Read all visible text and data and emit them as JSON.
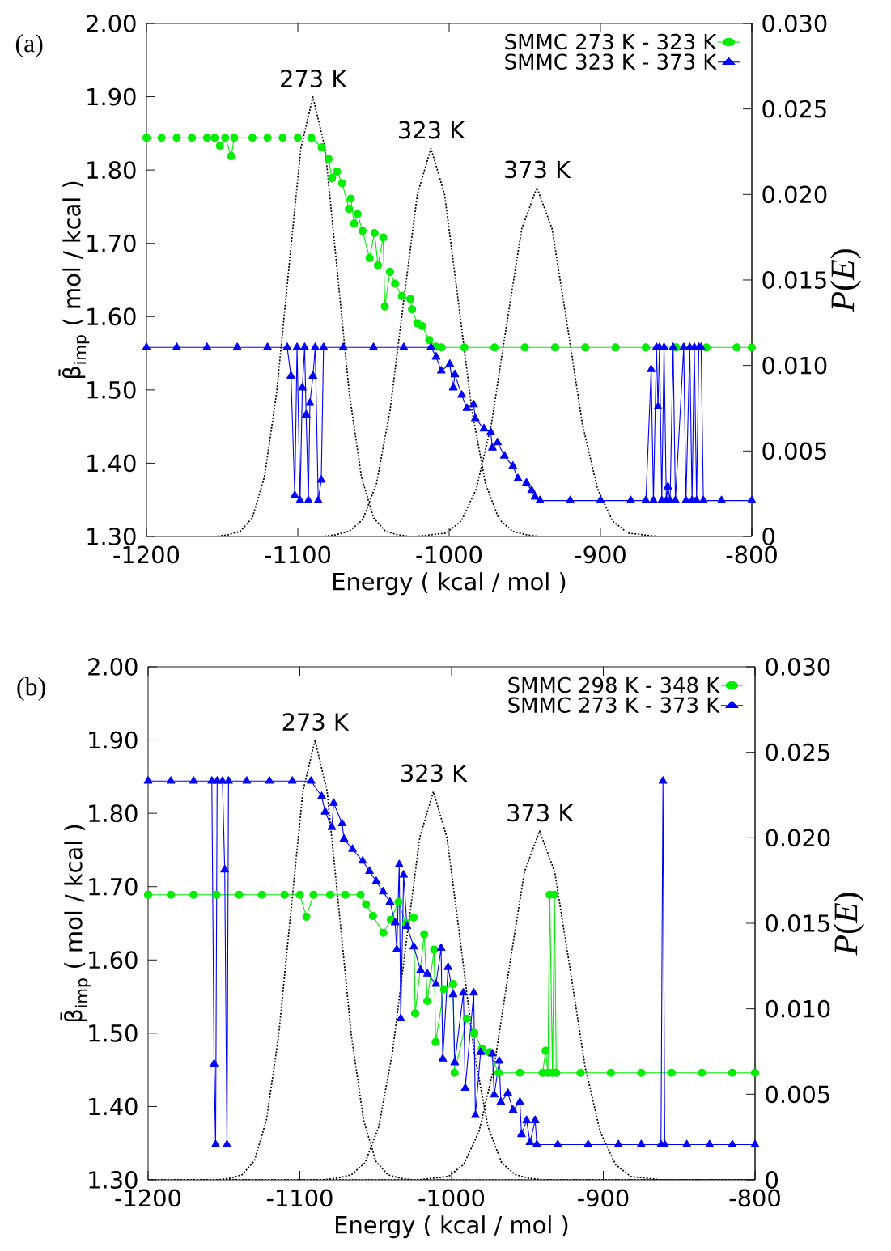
{
  "chart_data": [
    {
      "type": "line",
      "title": "(a)",
      "xlabel": "Energy ( kcal / mol )",
      "ylabel": "β̄$_{imp}$ ( mol / kcal )",
      "y2label": "*P*(*E*)",
      "legend": "top right",
      "xlim": [
        -1200,
        -800
      ],
      "xticks": [
        -1200,
        -1100,
        -1000,
        -900,
        -800
      ],
      "ylim": [
        1.3,
        2.0
      ],
      "yticks": [
        {
          "value": 1.3,
          "label": "1.30"
        },
        {
          "value": 1.4,
          "label": "1.40"
        },
        {
          "value": 1.5,
          "label": "1.50"
        },
        {
          "value": 1.6,
          "label": "1.60"
        },
        {
          "value": 1.7,
          "label": "1.70"
        },
        {
          "value": 1.8,
          "label": "1.80"
        },
        {
          "value": 1.9,
          "label": "1.90"
        },
        {
          "value": 2.0,
          "label": "2.00"
        }
      ],
      "y2lim": [
        0,
        0.03
      ],
      "y2ticks": [
        0,
        {
          "value": 0.005,
          "label": "0.005"
        },
        {
          "value": 0.01,
          "label": "0.010"
        },
        {
          "value": 0.015,
          "label": "0.015"
        },
        {
          "value": 0.02,
          "label": "0.020"
        },
        {
          "value": 0.025,
          "label": "0.025"
        },
        {
          "value": 0.03,
          "label": "0.030"
        }
      ],
      "annotations": [
        {
          "text": "273 K",
          "x": -1090,
          "y": 1.9
        },
        {
          "text": "323 K",
          "x": -1012,
          "y": 1.83
        },
        {
          "text": "373 K",
          "x": -942,
          "y": 1.776
        }
      ],
      "series": [
        {
          "name": "SMMC 273 K - 323 K",
          "color": "#00ee00",
          "marker": "circle",
          "line_style": "solid",
          "x": [
            -1200,
            -1190,
            -1180,
            -1170,
            -1160,
            -1155,
            -1151.5,
            -1148,
            -1144,
            -1142,
            -1130,
            -1120,
            -1110,
            -1100,
            -1091,
            -1084.2,
            -1079.7,
            -1077.4,
            -1074.1,
            -1070.7,
            -1066.2,
            -1065,
            -1062.8,
            -1060.5,
            -1057.2,
            -1052.6,
            -1049.3,
            -1047,
            -1043.6,
            -1042.5,
            -1039.1,
            -1035.7,
            -1031.2,
            -1025.6,
            -1024.5,
            -1021.1,
            -1017.7,
            -1013.2,
            -1008.7,
            -1005,
            -990,
            -970,
            -950,
            -930,
            -910,
            -890,
            -870,
            -850,
            -830,
            -810,
            -800
          ],
          "values": [
            1.844,
            1.844,
            1.844,
            1.844,
            1.844,
            1.844,
            1.833,
            1.844,
            1.819,
            1.844,
            1.844,
            1.844,
            1.844,
            1.844,
            1.844,
            1.831,
            1.815,
            1.789,
            1.798,
            1.782,
            1.747,
            1.761,
            1.727,
            1.74,
            1.717,
            1.68,
            1.714,
            1.67,
            1.708,
            1.614,
            1.661,
            1.645,
            1.628,
            1.624,
            1.61,
            1.591,
            1.587,
            1.568,
            1.559,
            1.558,
            1.558,
            1.558,
            1.558,
            1.558,
            1.558,
            1.558,
            1.558,
            1.558,
            1.558,
            1.558,
            1.558
          ]
        },
        {
          "name": "SMMC 323 K - 373 K",
          "color": "#0000ff",
          "marker": "triangle",
          "line_style": "solid",
          "x": [
            -1200,
            -1180,
            -1160,
            -1140,
            -1120,
            -1107,
            -1104.5,
            -1102,
            -1100.5,
            -1098.5,
            -1097,
            -1095.5,
            -1094.5,
            -1093,
            -1092,
            -1090,
            -1088.5,
            -1086.5,
            -1084.5,
            -1083,
            -1070,
            -1050,
            -1030,
            -1012,
            -1008.6,
            -1005.2,
            -999.6,
            -997.3,
            -996.2,
            -991.7,
            -988.3,
            -983.8,
            -982.7,
            -977,
            -972.5,
            -971.4,
            -968,
            -963.5,
            -957.9,
            -954.5,
            -948.9,
            -945.5,
            -943.2,
            -940,
            -920,
            -900,
            -880,
            -870,
            -866.5,
            -865,
            -863,
            -862,
            -861,
            -859.5,
            -858,
            -856.5,
            -855.5,
            -854,
            -852,
            -850.5,
            -845,
            -843.5,
            -841,
            -839.5,
            -838,
            -836.5,
            -835,
            -833.5,
            -832,
            -820,
            -800
          ],
          "values": [
            1.558,
            1.558,
            1.558,
            1.558,
            1.558,
            1.558,
            1.519,
            1.356,
            1.558,
            1.349,
            1.503,
            1.558,
            1.466,
            1.349,
            1.482,
            1.519,
            1.558,
            1.349,
            1.377,
            1.558,
            1.558,
            1.558,
            1.558,
            1.558,
            1.545,
            1.526,
            1.535,
            1.503,
            1.521,
            1.493,
            1.475,
            1.48,
            1.461,
            1.447,
            1.442,
            1.421,
            1.428,
            1.41,
            1.396,
            1.379,
            1.373,
            1.363,
            1.354,
            1.349,
            1.349,
            1.349,
            1.349,
            1.349,
            1.528,
            1.349,
            1.558,
            1.477,
            1.558,
            1.349,
            1.558,
            1.349,
            1.368,
            1.349,
            1.558,
            1.349,
            1.558,
            1.349,
            1.558,
            1.349,
            1.558,
            1.349,
            1.558,
            1.558,
            1.349,
            1.349,
            1.349
          ]
        },
        {
          "color": "#000000",
          "marker": "none",
          "line_style": "dotted",
          "axis": "y2",
          "x": [
            -1200,
            -1154,
            -1146,
            -1138,
            -1130,
            -1122,
            -1114,
            -1106,
            -1098,
            -1090,
            -1082,
            -1074,
            -1066,
            -1058,
            -1050,
            -1042,
            -1034,
            -1026,
            -800
          ],
          "values": [
            0,
            0,
            0.0001,
            0.0003,
            0.0011,
            0.0035,
            0.0084,
            0.0156,
            0.0227,
            0.0257,
            0.0227,
            0.0156,
            0.0084,
            0.0035,
            0.0011,
            0.0003,
            0.0001,
            0,
            0
          ]
        },
        {
          "color": "#000000",
          "marker": "none",
          "line_style": "dotted",
          "axis": "y2",
          "x": [
            -1200,
            -1084,
            -1075,
            -1066,
            -1057,
            -1048,
            -1039,
            -1030,
            -1021,
            -1012,
            -1003,
            -994,
            -985,
            -976,
            -967,
            -958,
            -949,
            -940,
            -800
          ],
          "values": [
            0,
            0,
            0.0001,
            0.0003,
            0.001,
            0.0031,
            0.0074,
            0.0138,
            0.02,
            0.0227,
            0.02,
            0.0138,
            0.0074,
            0.0031,
            0.001,
            0.0003,
            0.0001,
            0,
            0
          ]
        },
        {
          "color": "#000000",
          "marker": "none",
          "line_style": "dotted",
          "axis": "y2",
          "x": [
            -1200,
            -1022,
            -1012,
            -1002,
            -992,
            -982,
            -972,
            -962,
            -952,
            -942,
            -932,
            -922,
            -912,
            -902,
            -892,
            -882,
            -872,
            -862,
            -800
          ],
          "values": [
            0,
            0,
            0.0001,
            0.0002,
            0.0009,
            0.0028,
            0.0066,
            0.0124,
            0.018,
            0.0204,
            0.018,
            0.0124,
            0.0066,
            0.0028,
            0.0009,
            0.0002,
            0.0001,
            0,
            0
          ]
        }
      ]
    },
    {
      "type": "line",
      "title": "(b)",
      "xlabel": "Energy ( kcal / mol )",
      "ylabel": "β̄$_{imp}$ ( mol / kcal )",
      "y2label": "*P*(*E*)",
      "legend": "top right",
      "xlim": [
        -1200,
        -800
      ],
      "xticks": [
        -1200,
        -1100,
        -1000,
        -900,
        -800
      ],
      "ylim": [
        1.3,
        2.0
      ],
      "yticks": [
        {
          "value": 1.3,
          "label": "1.30"
        },
        {
          "value": 1.4,
          "label": "1.40"
        },
        {
          "value": 1.5,
          "label": "1.50"
        },
        {
          "value": 1.6,
          "label": "1.60"
        },
        {
          "value": 1.7,
          "label": "1.70"
        },
        {
          "value": 1.8,
          "label": "1.80"
        },
        {
          "value": 1.9,
          "label": "1.90"
        },
        {
          "value": 2.0,
          "label": "2.00"
        }
      ],
      "y2lim": [
        0,
        0.03
      ],
      "y2ticks": [
        0,
        {
          "value": 0.005,
          "label": "0.005"
        },
        {
          "value": 0.01,
          "label": "0.010"
        },
        {
          "value": 0.015,
          "label": "0.015"
        },
        {
          "value": 0.02,
          "label": "0.020"
        },
        {
          "value": 0.025,
          "label": "0.025"
        },
        {
          "value": 0.03,
          "label": "0.030"
        }
      ],
      "annotations": [
        {
          "text": "273 K",
          "x": -1090,
          "y": 1.9
        },
        {
          "text": "323 K",
          "x": -1012,
          "y": 1.83
        },
        {
          "text": "373 K",
          "x": -942,
          "y": 1.776
        }
      ],
      "series": [
        {
          "name": "SMMC 298 K - 348 K",
          "color": "#00ee00",
          "marker": "circle",
          "line_style": "solid",
          "x": [
            -1200,
            -1185,
            -1170,
            -1155,
            -1140,
            -1125,
            -1110,
            -1100,
            -1095.7,
            -1091,
            -1080,
            -1070,
            -1060,
            -1056.4,
            -1051.8,
            -1045,
            -1040,
            -1035,
            -1030,
            -1025,
            -1024,
            -1018,
            -1016,
            -1011.5,
            -1010.5,
            -1005,
            -999,
            -998,
            -990,
            -985,
            -980,
            -975,
            -969,
            -955,
            -940,
            -938,
            -936.5,
            -935.3,
            -933.5,
            -932.2,
            -931,
            -915,
            -895,
            -875,
            -855,
            -835,
            -815,
            -800
          ],
          "values": [
            1.689,
            1.689,
            1.689,
            1.689,
            1.689,
            1.689,
            1.689,
            1.689,
            1.659,
            1.689,
            1.689,
            1.689,
            1.689,
            1.676,
            1.66,
            1.637,
            1.655,
            1.679,
            1.65,
            1.658,
            1.527,
            1.635,
            1.544,
            1.614,
            1.488,
            1.56,
            1.567,
            1.446,
            1.52,
            1.5,
            1.479,
            1.474,
            1.446,
            1.446,
            1.446,
            1.476,
            1.446,
            1.689,
            1.446,
            1.689,
            1.446,
            1.446,
            1.446,
            1.446,
            1.446,
            1.446,
            1.446,
            1.446
          ]
        },
        {
          "name": "SMMC 273 K - 373 K",
          "color": "#0000ff",
          "marker": "triangle",
          "line_style": "solid",
          "x": [
            -1200,
            -1185,
            -1170,
            -1158,
            -1156.5,
            -1155.5,
            -1154.5,
            -1151,
            -1149.5,
            -1148,
            -1147,
            -1135,
            -1120,
            -1105,
            -1092.6,
            -1085.6,
            -1083.3,
            -1078.9,
            -1077.7,
            -1072.1,
            -1070.9,
            -1065.3,
            -1058.6,
            -1054.1,
            -1049.6,
            -1045.1,
            -1040.6,
            -1037.2,
            -1036.1,
            -1034.5,
            -1033.5,
            -1031.6,
            -1029.4,
            -1024.9,
            -1020.4,
            -1015.9,
            -1010.3,
            -1006.9,
            -1005.8,
            -1002.3,
            -999,
            -997.9,
            -992.2,
            -991,
            -985.4,
            -984.3,
            -980.9,
            -973.1,
            -971.9,
            -968.6,
            -967.5,
            -962.9,
            -959.5,
            -955,
            -953.9,
            -950.5,
            -948.3,
            -944.9,
            -943.8,
            -930,
            -910,
            -890,
            -875,
            -862,
            -860.7,
            -859.5,
            -845,
            -830,
            -815,
            -800
          ],
          "values": [
            1.844,
            1.844,
            1.844,
            1.844,
            1.458,
            1.348,
            1.844,
            1.844,
            1.723,
            1.348,
            1.844,
            1.844,
            1.844,
            1.844,
            1.844,
            1.823,
            1.802,
            1.781,
            1.814,
            1.786,
            1.765,
            1.751,
            1.735,
            1.721,
            1.707,
            1.693,
            1.679,
            1.651,
            1.614,
            1.73,
            1.52,
            1.716,
            1.646,
            1.618,
            1.586,
            1.581,
            1.567,
            1.616,
            1.465,
            1.59,
            1.553,
            1.46,
            1.555,
            1.425,
            1.555,
            1.388,
            1.474,
            1.472,
            1.416,
            1.462,
            1.406,
            1.418,
            1.395,
            1.406,
            1.362,
            1.381,
            1.351,
            1.381,
            1.348,
            1.348,
            1.348,
            1.348,
            1.348,
            1.348,
            1.844,
            1.348,
            1.348,
            1.348,
            1.348,
            1.348
          ]
        },
        {
          "color": "#000000",
          "marker": "none",
          "line_style": "dotted",
          "axis": "y2",
          "x": [
            -1200,
            -1154,
            -1146,
            -1138,
            -1130,
            -1122,
            -1114,
            -1106,
            -1098,
            -1090,
            -1082,
            -1074,
            -1066,
            -1058,
            -1050,
            -1042,
            -1034,
            -1026,
            -800
          ],
          "values": [
            0,
            0,
            0.0001,
            0.0003,
            0.0011,
            0.0035,
            0.0084,
            0.0156,
            0.0227,
            0.0257,
            0.0227,
            0.0156,
            0.0084,
            0.0035,
            0.0011,
            0.0003,
            0.0001,
            0,
            0
          ]
        },
        {
          "color": "#000000",
          "marker": "none",
          "line_style": "dotted",
          "axis": "y2",
          "x": [
            -1200,
            -1084,
            -1075,
            -1066,
            -1057,
            -1048,
            -1039,
            -1030,
            -1021,
            -1012,
            -1003,
            -994,
            -985,
            -976,
            -967,
            -958,
            -949,
            -940,
            -800
          ],
          "values": [
            0,
            0,
            0.0001,
            0.0003,
            0.001,
            0.0031,
            0.0074,
            0.0138,
            0.02,
            0.0227,
            0.02,
            0.0138,
            0.0074,
            0.0031,
            0.001,
            0.0003,
            0.0001,
            0,
            0
          ]
        },
        {
          "color": "#000000",
          "marker": "none",
          "line_style": "dotted",
          "axis": "y2",
          "x": [
            -1200,
            -1022,
            -1012,
            -1002,
            -992,
            -982,
            -972,
            -962,
            -952,
            -942,
            -932,
            -922,
            -912,
            -902,
            -892,
            -882,
            -872,
            -862,
            -800
          ],
          "values": [
            0,
            0,
            0.0001,
            0.0002,
            0.0009,
            0.0028,
            0.0066,
            0.0124,
            0.018,
            0.0204,
            0.018,
            0.0124,
            0.0066,
            0.0028,
            0.0009,
            0.0002,
            0.0001,
            0,
            0
          ]
        }
      ]
    }
  ]
}
